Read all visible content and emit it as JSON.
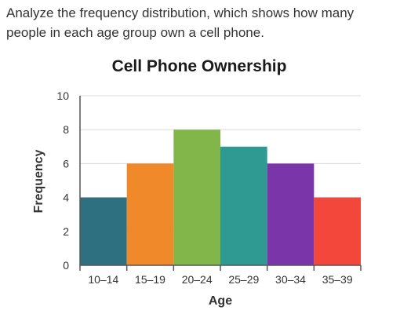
{
  "question": {
    "text": "Analyze the frequency distribution, which shows how many people in each age group own a cell phone."
  },
  "chart_data": {
    "type": "bar",
    "title": "Cell Phone Ownership",
    "xlabel": "Age",
    "ylabel": "Frequency",
    "categories": [
      "10–14",
      "15–19",
      "20–24",
      "25–29",
      "30–34",
      "35–39"
    ],
    "values": [
      4,
      6,
      8,
      7,
      6,
      4
    ],
    "colors": [
      "#2e7080",
      "#f0892a",
      "#82b54a",
      "#2e9a92",
      "#7a35a8",
      "#f2473a"
    ],
    "ylim": [
      0,
      10
    ],
    "yticks": [
      "0",
      "2",
      "4",
      "6",
      "8",
      "10"
    ],
    "grid": true,
    "legend": "none"
  }
}
